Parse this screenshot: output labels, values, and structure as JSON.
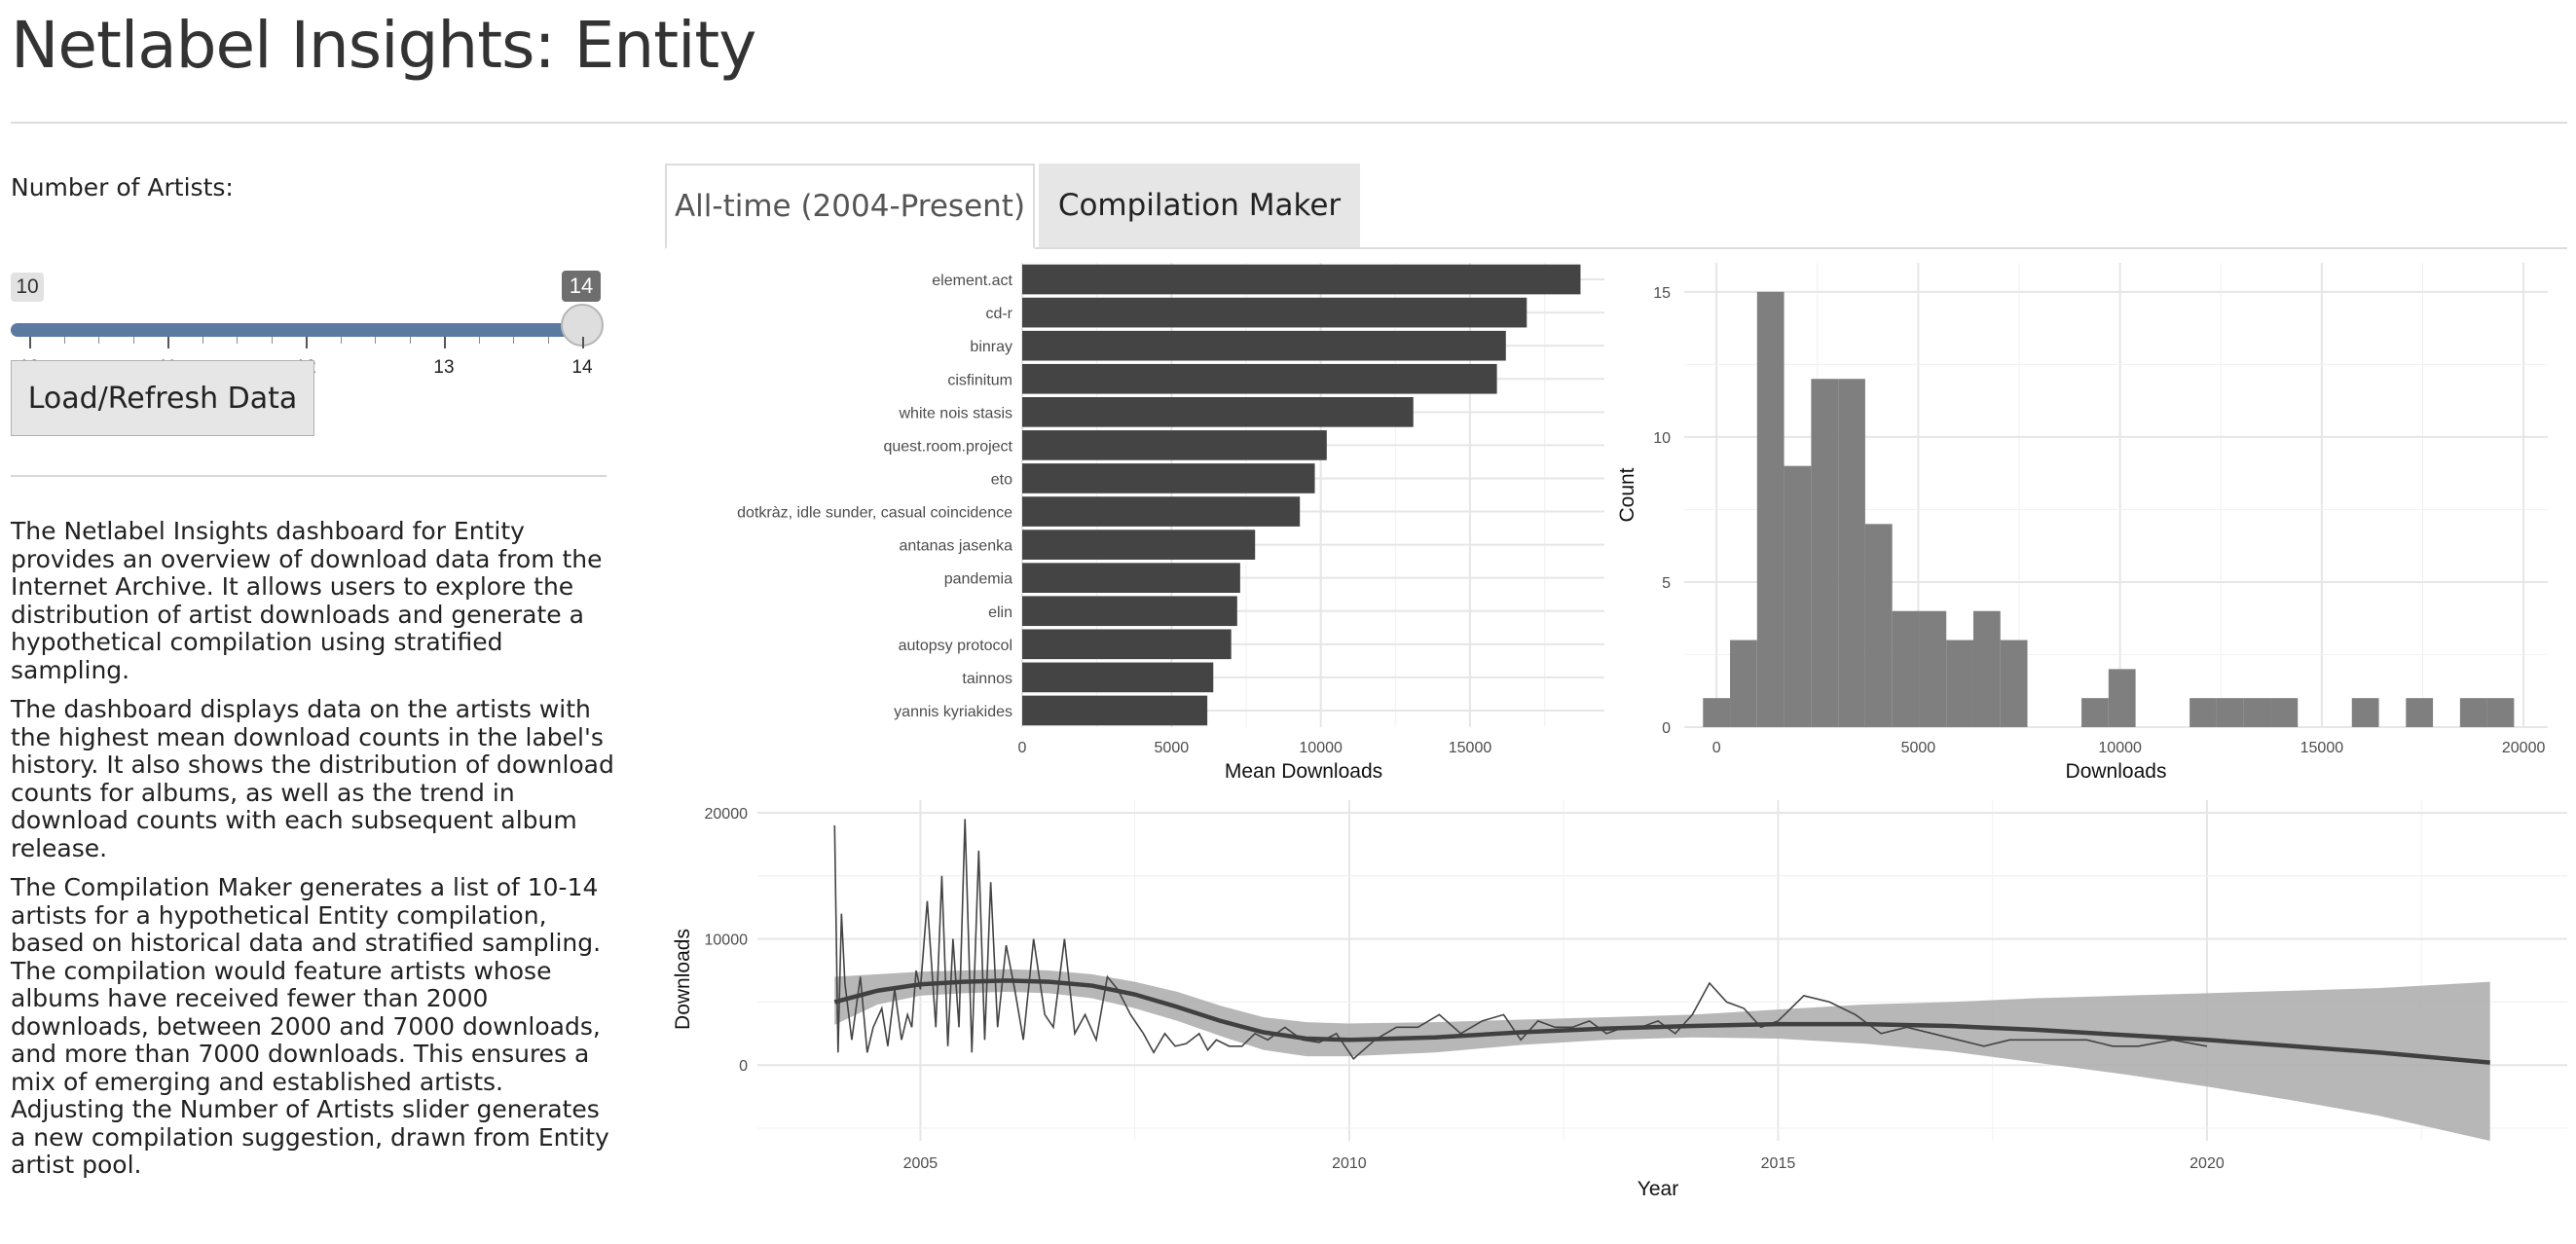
{
  "app": {
    "title": "Netlabel Insights: Entity"
  },
  "sidebar": {
    "slider": {
      "label": "Number of Artists:",
      "min": 10,
      "max": 14,
      "value_min": 10,
      "value_max": 14,
      "value_min_label": "10",
      "value_max_label": "14",
      "tick_labels": [
        "10",
        "11",
        "12",
        "13",
        "14"
      ]
    },
    "load_button": "Load/Refresh Data",
    "description": [
      "The Netlabel Insights dashboard for Entity provides an overview of download data from the Internet Archive. It allows users to explore the distribution of artist downloads and generate a hypothetical compilation using stratified sampling.",
      "The dashboard displays data on the artists with the highest mean download counts in the label's history. It also shows the distribution of download counts for albums, as well as the trend in download counts with each subsequent album release.",
      "The Compilation Maker generates a list of 10-14 artists for a hypothetical Entity compilation, based on historical data and stratified sampling. The compilation would feature artists whose albums have received fewer than 2000 downloads, between 2000 and 7000 downloads, and more than 7000 downloads. This ensures a mix of emerging and established artists. Adjusting the Number of Artists slider generates a new compilation suggestion, drawn from Entity artist pool."
    ]
  },
  "tabs": [
    {
      "label": "All-time (2004-Present)",
      "active": true
    },
    {
      "label": "Compilation Maker",
      "active": false
    }
  ],
  "colors": {
    "bar": "#444444",
    "hist": "#7f7f7f",
    "band": "#aaaaaa",
    "line": "#404040",
    "slider_track": "#5b7aa0"
  },
  "chart_data": [
    {
      "type": "bar",
      "orientation": "horizontal",
      "categories": [
        "element.act",
        "cd-r",
        "binray",
        "cisfinitum",
        "white nois stasis",
        "quest.room.project",
        "eto",
        "dotkràz, idle sunder, casual coincidence",
        "antanas jasenka",
        "pandemia",
        "elin",
        "autopsy protocol",
        "tainnos",
        "yannis kyriakides"
      ],
      "values": [
        18700,
        16900,
        16200,
        15900,
        13100,
        10200,
        9800,
        9300,
        7800,
        7300,
        7200,
        7000,
        6400,
        6200
      ],
      "xlabel": "Mean Downloads",
      "ylabel": "",
      "xlim": [
        0,
        19500
      ],
      "xticks": [
        0,
        5000,
        10000,
        15000
      ],
      "grid": true
    },
    {
      "type": "histogram",
      "bin_width": 670,
      "bins": [
        {
          "x": 0,
          "count": 1
        },
        {
          "x": 670,
          "count": 3
        },
        {
          "x": 1340,
          "count": 15
        },
        {
          "x": 2010,
          "count": 9
        },
        {
          "x": 2680,
          "count": 12
        },
        {
          "x": 3350,
          "count": 12
        },
        {
          "x": 4020,
          "count": 7
        },
        {
          "x": 4690,
          "count": 4
        },
        {
          "x": 5360,
          "count": 4
        },
        {
          "x": 6030,
          "count": 3
        },
        {
          "x": 6700,
          "count": 4
        },
        {
          "x": 7370,
          "count": 3
        },
        {
          "x": 9380,
          "count": 1
        },
        {
          "x": 10050,
          "count": 2
        },
        {
          "x": 12060,
          "count": 1
        },
        {
          "x": 12730,
          "count": 1
        },
        {
          "x": 13400,
          "count": 1
        },
        {
          "x": 14070,
          "count": 1
        },
        {
          "x": 16080,
          "count": 1
        },
        {
          "x": 17420,
          "count": 1
        },
        {
          "x": 18760,
          "count": 1
        },
        {
          "x": 19430,
          "count": 1
        }
      ],
      "xlabel": "Downloads",
      "ylabel": "Count",
      "xlim": [
        -800,
        20600
      ],
      "ylim": [
        0,
        16
      ],
      "xticks": [
        0,
        5000,
        10000,
        15000,
        20000
      ],
      "yticks": [
        0,
        5,
        10,
        15
      ],
      "grid": true
    },
    {
      "type": "line",
      "xlabel": "Year",
      "ylabel": "Downloads",
      "xlim": [
        2003.1,
        2024.2
      ],
      "ylim": [
        -6000,
        21000
      ],
      "xticks": [
        2005,
        2010,
        2015,
        2020
      ],
      "yticks": [
        0,
        10000,
        20000
      ],
      "grid": true,
      "series": [
        {
          "kind": "raw",
          "x": [
            2004.0,
            2004.04,
            2004.08,
            2004.12,
            2004.2,
            2004.3,
            2004.38,
            2004.45,
            2004.55,
            2004.62,
            2004.7,
            2004.78,
            2004.85,
            2004.9,
            2004.95,
            2005.0,
            2005.08,
            2005.18,
            2005.25,
            2005.32,
            2005.38,
            2005.45,
            2005.52,
            2005.6,
            2005.68,
            2005.75,
            2005.82,
            2005.9,
            2006.0,
            2006.1,
            2006.2,
            2006.32,
            2006.45,
            2006.55,
            2006.68,
            2006.8,
            2006.92,
            2007.05,
            2007.18,
            2007.3,
            2007.45,
            2007.6,
            2007.72,
            2007.85,
            2007.97,
            2008.1,
            2008.25,
            2008.35,
            2008.45,
            2008.6,
            2008.75,
            2008.9,
            2009.05,
            2009.25,
            2009.45,
            2009.65,
            2009.85,
            2010.05,
            2010.3,
            2010.55,
            2010.8,
            2011.05,
            2011.3,
            2011.55,
            2011.8,
            2012.0,
            2012.2,
            2012.4,
            2012.6,
            2012.8,
            2013.0,
            2013.2,
            2013.4,
            2013.6,
            2013.8,
            2014.0,
            2014.2,
            2014.4,
            2014.6,
            2014.8,
            2015.0,
            2015.3,
            2015.6,
            2015.9,
            2016.2,
            2016.5,
            2016.8,
            2017.1,
            2017.4,
            2017.7,
            2018.0,
            2018.3,
            2018.6,
            2018.9,
            2019.2,
            2019.6,
            2020.0
          ],
          "y": [
            19000,
            1000,
            12000,
            6500,
            2000,
            7000,
            1000,
            3000,
            4500,
            1500,
            6000,
            2000,
            4000,
            3000,
            7500,
            6000,
            13000,
            3000,
            15000,
            1500,
            10000,
            3000,
            19500,
            1000,
            17000,
            2000,
            14500,
            3000,
            9500,
            6000,
            2000,
            10000,
            4000,
            3000,
            10000,
            2500,
            4000,
            2000,
            7000,
            6000,
            4000,
            2500,
            1000,
            2500,
            1500,
            1700,
            2500,
            1200,
            2000,
            1500,
            1500,
            2500,
            2000,
            3000,
            2000,
            1800,
            2500,
            500,
            2000,
            3000,
            3000,
            4000,
            2500,
            3500,
            4000,
            2000,
            3500,
            3000,
            3000,
            3500,
            2500,
            3000,
            3000,
            3500,
            2500,
            4000,
            6500,
            5000,
            4500,
            3000,
            3500,
            5500,
            5000,
            4000,
            2500,
            3000,
            2500,
            2000,
            1500,
            2000,
            2000,
            2000,
            2000,
            1500,
            1500,
            2000,
            1500
          ]
        },
        {
          "kind": "smooth",
          "x": [
            2004.0,
            2004.5,
            2005.0,
            2005.5,
            2006.0,
            2006.5,
            2007.0,
            2007.5,
            2008.0,
            2008.5,
            2009.0,
            2009.5,
            2010.0,
            2011.0,
            2012.0,
            2013.0,
            2014.0,
            2015.0,
            2016.0,
            2017.0,
            2018.0,
            2019.0,
            2020.0,
            2021.0,
            2022.0,
            2023.3
          ],
          "y": [
            5000,
            5900,
            6400,
            6600,
            6700,
            6600,
            6300,
            5600,
            4600,
            3500,
            2600,
            2100,
            2000,
            2200,
            2600,
            2900,
            3100,
            3250,
            3250,
            3100,
            2800,
            2400,
            2000,
            1500,
            1000,
            200
          ],
          "lower": [
            3200,
            4800,
            5500,
            5700,
            5800,
            5700,
            5300,
            4500,
            3500,
            2300,
            1200,
            700,
            700,
            1000,
            1600,
            2000,
            2200,
            2100,
            1700,
            1100,
            200,
            -700,
            -1700,
            -2800,
            -4000,
            -6000
          ],
          "upper": [
            7000,
            7200,
            7400,
            7500,
            7600,
            7500,
            7200,
            6600,
            5800,
            4700,
            3800,
            3400,
            3300,
            3400,
            3600,
            3800,
            4000,
            4400,
            4800,
            5000,
            5300,
            5500,
            5700,
            5900,
            6100,
            6600
          ]
        }
      ]
    }
  ]
}
